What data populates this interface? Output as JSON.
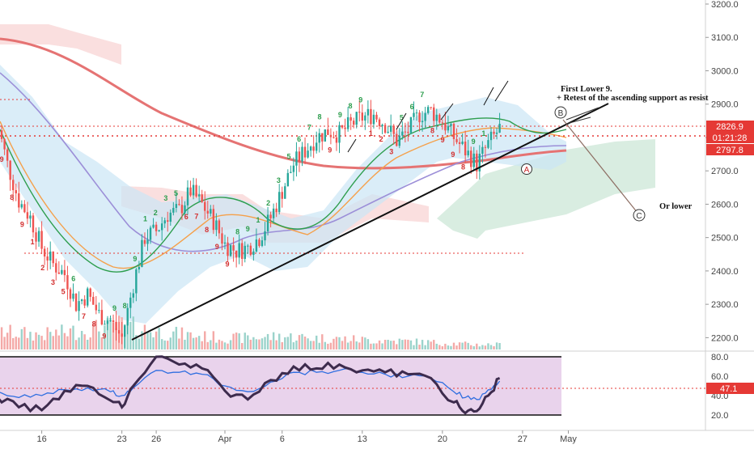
{
  "chart_data": [
    {
      "type": "candlestick",
      "instrument_unit": "price",
      "ylim": [
        2150,
        3200
      ],
      "price_ticks": [
        "3200.0",
        "3100.0",
        "3000.0",
        "2900.0",
        "2800.0",
        "2700.0",
        "2600.0",
        "2500.0",
        "2400.0",
        "2300.0",
        "2200.0"
      ],
      "date_ticks": [
        "16",
        "23",
        "26",
        "Apr",
        "6",
        "13",
        "20",
        "27",
        "May"
      ],
      "last_price_label": "2826.9",
      "countdown_label": "01:21:28",
      "secondary_price_label": "2797.8",
      "annotations": {
        "headline": "First Lower 9.",
        "subline": "+ Retest of the ascending support as resist",
        "wave_b": "B",
        "wave_a": "A",
        "wave_c": "C",
        "wave_c_note": "Or lower"
      },
      "price_path": [
        [
          "Mar 12",
          2860
        ],
        [
          "Mar 13",
          2720
        ],
        [
          "Mar 14",
          2610
        ],
        [
          "Mar 15",
          2560
        ],
        [
          "Mar 16",
          2470
        ],
        [
          "Mar 17",
          2420
        ],
        [
          "Mar 18",
          2390
        ],
        [
          "Mar 19",
          2300
        ],
        [
          "Mar 20",
          2330
        ],
        [
          "Mar 21",
          2270
        ],
        [
          "Mar 22",
          2250
        ],
        [
          "Mar 23",
          2200
        ],
        [
          "Mar 24",
          2360
        ],
        [
          "Mar 25",
          2500
        ],
        [
          "Mar 26",
          2520
        ],
        [
          "Mar 27",
          2570
        ],
        [
          "Mar 28",
          2580
        ],
        [
          "Mar 29",
          2640
        ],
        [
          "Mar 30",
          2600
        ],
        [
          "Mar 31",
          2550
        ],
        [
          "Apr 1",
          2480
        ],
        [
          "Apr 2",
          2460
        ],
        [
          "Apr 3",
          2470
        ],
        [
          "Apr 4",
          2500
        ],
        [
          "Apr 5",
          2560
        ],
        [
          "Apr 6",
          2640
        ],
        [
          "Apr 7",
          2720
        ],
        [
          "Apr 8",
          2760
        ],
        [
          "Apr 9",
          2800
        ],
        [
          "Apr 10",
          2820
        ],
        [
          "Apr 11",
          2810
        ],
        [
          "Apr 12",
          2840
        ],
        [
          "Apr 13",
          2860
        ],
        [
          "Apr 14",
          2870
        ],
        [
          "Apr 15",
          2840
        ],
        [
          "Apr 16",
          2790
        ],
        [
          "Apr 17",
          2820
        ],
        [
          "Apr 18",
          2870
        ],
        [
          "Apr 19",
          2880
        ],
        [
          "Apr 20",
          2850
        ],
        [
          "Apr 21",
          2800
        ],
        [
          "Apr 22",
          2760
        ],
        [
          "Apr 23",
          2720
        ],
        [
          "Apr 24",
          2780
        ],
        [
          "Apr 25",
          2827
        ]
      ],
      "marked_counts": [
        "9",
        "8",
        "9",
        "1",
        "2",
        "3",
        "5",
        "6",
        "7",
        "8",
        "9"
      ],
      "volume": [
        {
          "x": "Mar 12",
          "v": 0.55
        },
        {
          "x": "Mar 16",
          "v": 0.45
        },
        {
          "x": "Mar 20",
          "v": 0.6
        },
        {
          "x": "Mar 23",
          "v": 0.75
        },
        {
          "x": "Mar 26",
          "v": 0.55
        },
        {
          "x": "Mar 30",
          "v": 0.4
        },
        {
          "x": "Apr 2",
          "v": 0.35
        },
        {
          "x": "Apr 6",
          "v": 0.4
        },
        {
          "x": "Apr 9",
          "v": 0.35
        },
        {
          "x": "Apr 13",
          "v": 0.3
        },
        {
          "x": "Apr 17",
          "v": 0.25
        },
        {
          "x": "Apr 20",
          "v": 0.2
        },
        {
          "x": "Apr 23",
          "v": 0.15
        }
      ]
    },
    {
      "type": "line",
      "indicator": "oscillator",
      "ylim": [
        10,
        85
      ],
      "ticks": [
        "80.0",
        "60.0",
        "40.0",
        "20.0"
      ],
      "current_value_label": "47.1",
      "series": [
        {
          "color": "#3d2b4d",
          "values": [
            [
              "Mar 12",
              40
            ],
            [
              "Mar 14",
              28
            ],
            [
              "Mar 16",
              25
            ],
            [
              "Mar 18",
              45
            ],
            [
              "Mar 20",
              50
            ],
            [
              "Mar 22",
              35
            ],
            [
              "Mar 23",
              28
            ],
            [
              "Mar 24",
              50
            ],
            [
              "Mar 26",
              80
            ],
            [
              "Mar 28",
              72
            ],
            [
              "Mar 30",
              68
            ],
            [
              "Apr 1",
              45
            ],
            [
              "Apr 3",
              36
            ],
            [
              "Apr 5",
              56
            ],
            [
              "Apr 7",
              70
            ],
            [
              "Apr 9",
              68
            ],
            [
              "Apr 11",
              72
            ],
            [
              "Apr 13",
              66
            ],
            [
              "Apr 15",
              64
            ],
            [
              "Apr 17",
              62
            ],
            [
              "Apr 19",
              58
            ],
            [
              "Apr 21",
              33
            ],
            [
              "Apr 22",
              22
            ],
            [
              "Apr 23",
              24
            ],
            [
              "Apr 24",
              40
            ],
            [
              "Apr 25",
              58
            ]
          ]
        },
        {
          "color": "#2f6ee0",
          "values": [
            [
              "Mar 12",
              45
            ],
            [
              "Mar 14",
              38
            ],
            [
              "Mar 16",
              40
            ],
            [
              "Mar 18",
              46
            ],
            [
              "Mar 20",
              48
            ],
            [
              "Mar 22",
              44
            ],
            [
              "Mar 23",
              40
            ],
            [
              "Mar 24",
              48
            ],
            [
              "Mar 26",
              66
            ],
            [
              "Mar 28",
              64
            ],
            [
              "Mar 30",
              62
            ],
            [
              "Apr 1",
              50
            ],
            [
              "Apr 3",
              44
            ],
            [
              "Apr 5",
              54
            ],
            [
              "Apr 7",
              64
            ],
            [
              "Apr 9",
              64
            ],
            [
              "Apr 11",
              66
            ],
            [
              "Apr 13",
              64
            ],
            [
              "Apr 15",
              62
            ],
            [
              "Apr 17",
              60
            ],
            [
              "Apr 19",
              58
            ],
            [
              "Apr 21",
              44
            ],
            [
              "Apr 22",
              38
            ],
            [
              "Apr 23",
              36
            ],
            [
              "Apr 24",
              46
            ],
            [
              "Apr 25",
              55
            ]
          ]
        }
      ]
    }
  ],
  "colors": {
    "up": "#26a69a",
    "down": "#ef5350",
    "price_label_bg": "#e53935",
    "trendline": "#111111"
  }
}
